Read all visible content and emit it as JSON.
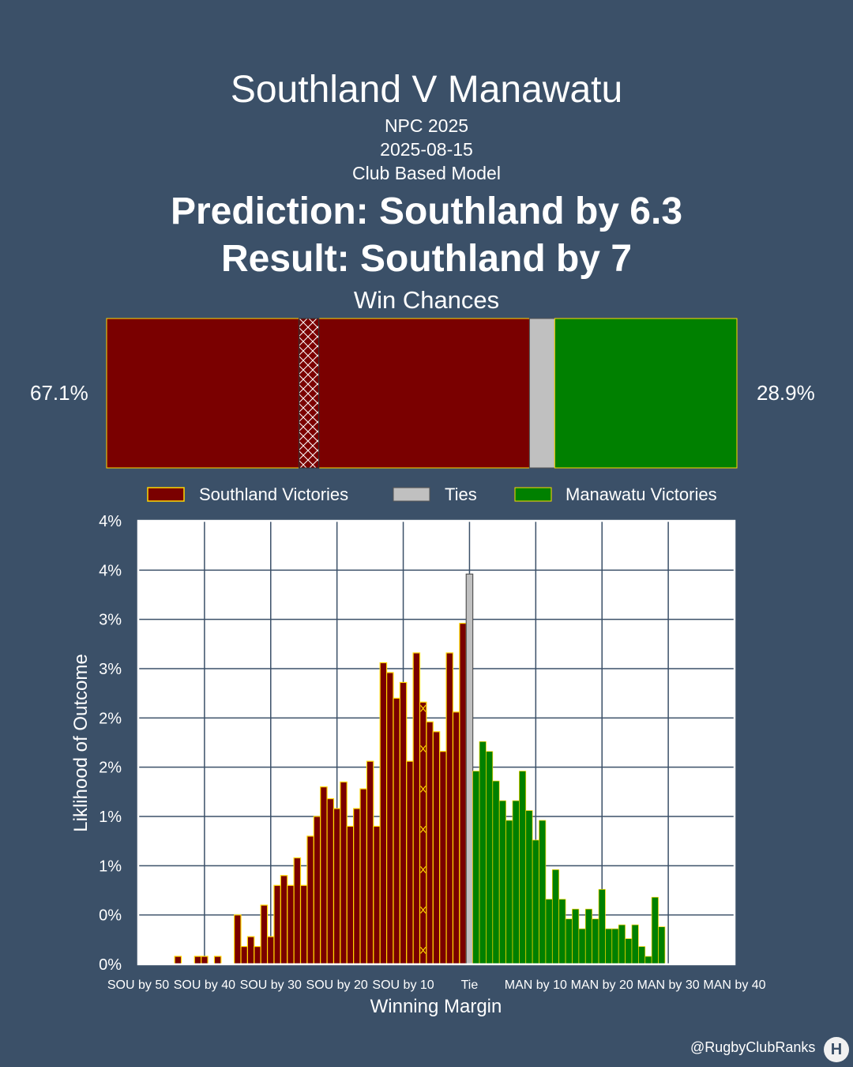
{
  "header": {
    "title": "Southland V Manawatu",
    "competition": "NPC 2025",
    "date": "2025-08-15",
    "model": "Club Based Model",
    "prediction": "Prediction: Southland by 6.3",
    "result": "Result: Southland by 7",
    "win_chances_label": "Win Chances"
  },
  "win_chances": {
    "home_pct_label": "67.1%",
    "away_pct_label": "28.9%",
    "home": 67.1,
    "tie": 4.0,
    "away": 28.9,
    "predicted_result_margin": 7
  },
  "legend": [
    "Southland Victories",
    "Ties",
    "Manawatu Victories"
  ],
  "colors": {
    "home": "#7a0000",
    "tie": "#c0c0c0",
    "away": "#008000",
    "edge": "#ffd700",
    "background": "#3b5068"
  },
  "chart_data": {
    "type": "bar",
    "ylabel": "Liklihood of Outcome",
    "xlabel": "Winning Margin",
    "ytick_labels": [
      "0%",
      "0%",
      "1%",
      "1%",
      "2%",
      "2%",
      "3%",
      "3%",
      "4%",
      "4%"
    ],
    "xtick_labels": [
      "SOU by 50",
      "SOU by 40",
      "SOU by 30",
      "SOU by 20",
      "SOU by 10",
      "Tie",
      "MAN by 10",
      "MAN by 20",
      "MAN by 30",
      "MAN by 40"
    ],
    "ylim": [
      0,
      4.5
    ],
    "xlim": [
      -50,
      40
    ],
    "grid": true,
    "highlight_margin": -7,
    "series": [
      {
        "name": "Southland Victories",
        "x": [
          -44,
          -41,
          -40,
          -38,
          -35,
          -34,
          -33,
          -32,
          -31,
          -30,
          -29,
          -28,
          -27,
          -26,
          -25,
          -24,
          -23,
          -22,
          -21,
          -20,
          -19,
          -18,
          -17,
          -16,
          -15,
          -14,
          -13,
          -12,
          -11,
          -10,
          -9,
          -8,
          -7,
          -6,
          -5,
          -4,
          -3,
          -2,
          -1
        ],
        "values": [
          0.08,
          0.08,
          0.08,
          0.08,
          0.5,
          0.18,
          0.28,
          0.18,
          0.6,
          0.28,
          0.8,
          0.9,
          0.8,
          1.08,
          0.8,
          1.3,
          1.5,
          1.8,
          1.68,
          1.58,
          1.85,
          1.4,
          1.58,
          1.78,
          2.06,
          1.4,
          3.06,
          2.96,
          2.7,
          2.86,
          2.06,
          3.16,
          2.66,
          2.46,
          2.36,
          2.16,
          3.16,
          2.56,
          3.46
        ],
        "color": "#7a0000"
      },
      {
        "name": "Ties",
        "x": [
          0
        ],
        "values": [
          3.96
        ],
        "color": "#c0c0c0"
      },
      {
        "name": "Manawatu Victories",
        "x": [
          1,
          2,
          3,
          4,
          5,
          6,
          7,
          8,
          9,
          10,
          11,
          12,
          13,
          14,
          15,
          16,
          17,
          18,
          19,
          20,
          21,
          22,
          23,
          24,
          25,
          26,
          27,
          28,
          29
        ],
        "values": [
          1.96,
          2.26,
          2.16,
          1.86,
          1.66,
          1.46,
          1.66,
          1.96,
          1.56,
          1.26,
          1.46,
          0.66,
          0.96,
          0.66,
          0.46,
          0.56,
          0.36,
          0.56,
          0.46,
          0.76,
          0.36,
          0.36,
          0.4,
          0.26,
          0.4,
          0.18,
          0.08,
          0.68,
          0.38
        ]
      }
    ]
  }
}
